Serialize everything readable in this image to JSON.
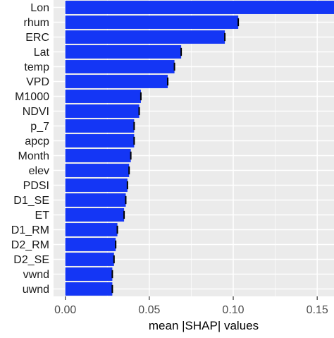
{
  "chart_data": {
    "type": "bar",
    "orientation": "horizontal",
    "categories": [
      "Lon",
      "rhum",
      "ERC",
      "Lat",
      "temp",
      "VPD",
      "M1000",
      "NDVI",
      "p_7",
      "apcp",
      "Month",
      "elev",
      "PDSI",
      "D1_SE",
      "ET",
      "D1_RM",
      "D2_RM",
      "D2_SE",
      "vwnd",
      "uwnd"
    ],
    "values": [
      0.16,
      0.103,
      0.095,
      0.069,
      0.065,
      0.061,
      0.045,
      0.044,
      0.041,
      0.041,
      0.039,
      0.038,
      0.037,
      0.036,
      0.035,
      0.031,
      0.03,
      0.029,
      0.028,
      0.028
    ],
    "title": "",
    "xlabel": "mean |SHAP| values",
    "ylabel": "",
    "xlim": [
      -0.007,
      0.16
    ],
    "xticks": [
      0.0,
      0.05,
      0.1,
      0.15
    ],
    "xtick_labels": [
      "0.00",
      "0.05",
      "0.10",
      "0.15"
    ],
    "grid": true,
    "legend": "none"
  },
  "colors": {
    "bar": "#1436f5",
    "panel_background": "#ebebeb",
    "grid": "#ffffff",
    "error_tick": "#000000"
  }
}
